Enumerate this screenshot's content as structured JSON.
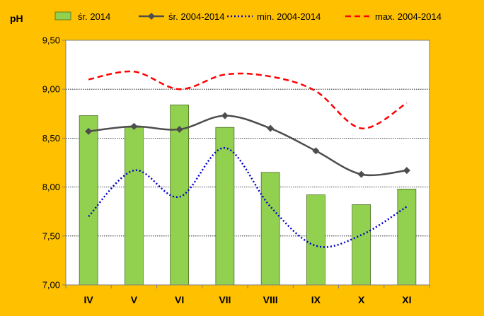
{
  "chart_data": {
    "type": "bar",
    "ylabel": "pH",
    "ylim": [
      7.0,
      9.5
    ],
    "yticks": [
      "7,00",
      "7,50",
      "8,00",
      "8,50",
      "9,00",
      "9,50"
    ],
    "grid": true,
    "legend_position": "top",
    "categories": [
      "IV",
      "V",
      "VI",
      "VII",
      "VIII",
      "IX",
      "X",
      "XI"
    ],
    "series": [
      {
        "name": "śr. 2014",
        "kind": "bar",
        "color": "#92D050",
        "values": [
          8.73,
          8.61,
          8.84,
          8.61,
          8.15,
          7.92,
          7.82,
          7.98
        ]
      },
      {
        "name": "śr. 2004-2014",
        "kind": "line-markers",
        "color": "#4D4D4D",
        "values": [
          8.57,
          8.62,
          8.59,
          8.73,
          8.6,
          8.37,
          8.13,
          8.17
        ]
      },
      {
        "name": "min. 2004-2014",
        "kind": "dotted-line",
        "color": "#0000CC",
        "values": [
          7.7,
          8.17,
          7.9,
          8.4,
          7.8,
          7.4,
          7.51,
          7.8
        ]
      },
      {
        "name": "max. 2004-2014",
        "kind": "dashed-line",
        "color": "#FF0000",
        "values": [
          9.1,
          9.18,
          9.0,
          9.15,
          9.13,
          8.98,
          8.6,
          8.86
        ]
      }
    ]
  }
}
